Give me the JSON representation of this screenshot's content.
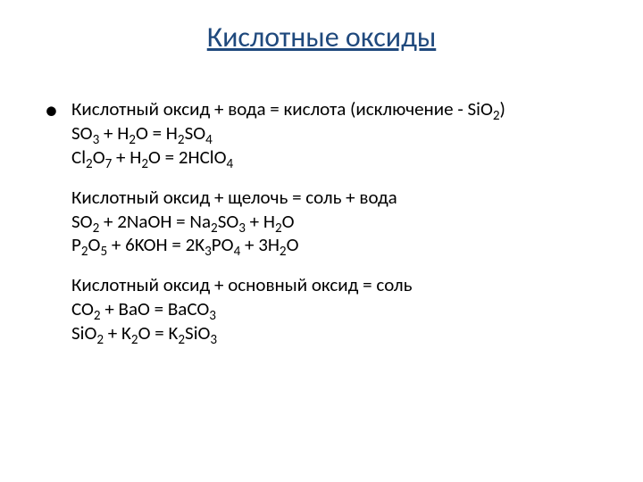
{
  "title": "Кислотные оксиды",
  "title_color": "#1f497d",
  "background_color": "#ffffff",
  "text_color": "#000000",
  "title_fontsize": 32,
  "body_fontsize": 21,
  "sections": [
    {
      "heading": "Кислотный оксид + вода = кислота (исключение - SiO<sub>2</sub>)",
      "lines": [
        "SO<sub>3</sub> + H<sub>2</sub>O = H<sub>2</sub>SO<sub>4</sub>",
        "Cl<sub>2</sub>O<sub>7</sub> + H<sub>2</sub>O = 2HClO<sub>4</sub>"
      ]
    },
    {
      "heading": "Кислотный оксид + щелочь = соль + вода",
      "lines": [
        "SO<sub>2</sub> + 2NaOH = Na<sub>2</sub>SO<sub>3</sub> + H<sub>2</sub>O",
        "P<sub>2</sub>O<sub>5</sub> + 6KOH = 2K<sub>3</sub>PO<sub>4</sub> + 3H<sub>2</sub>O"
      ]
    },
    {
      "heading": "Кислотный оксид + основный оксид = соль",
      "lines": [
        "CO<sub>2</sub> + BaO = BaCO<sub>3</sub>",
        "SiO<sub>2</sub> + K<sub>2</sub>O = K<sub>2</sub>SiO<sub>3</sub>"
      ]
    }
  ]
}
